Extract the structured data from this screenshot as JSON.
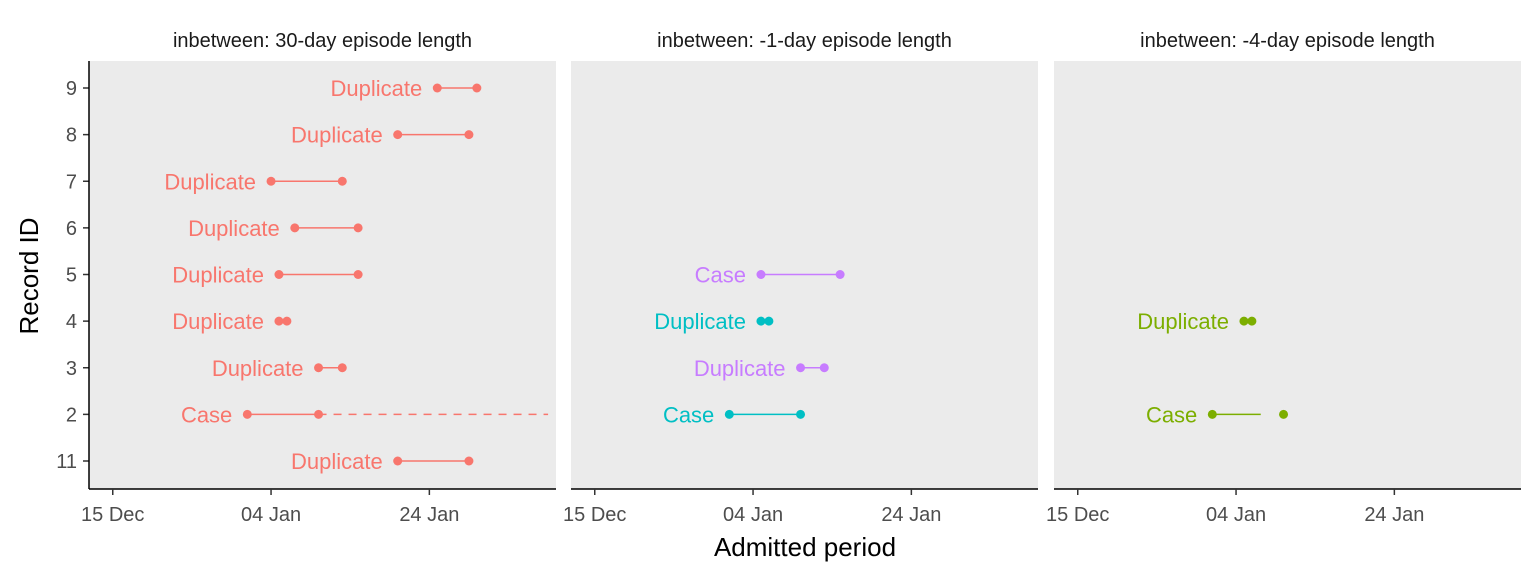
{
  "chart_data": {
    "type": "segment",
    "xlabel": "Admitted period",
    "ylabel": "Record ID",
    "x_ticks": [
      {
        "date": "2019-12-15",
        "label": "15 Dec"
      },
      {
        "date": "2020-01-04",
        "label": "04 Jan"
      },
      {
        "date": "2020-01-24",
        "label": "24 Jan"
      }
    ],
    "xlim": [
      "2019-12-12",
      "2020-02-09"
    ],
    "y_categories": [
      "11",
      "2",
      "3",
      "4",
      "5",
      "6",
      "7",
      "8",
      "9"
    ],
    "grid": false,
    "colors": {
      "panel1": "#F8766D",
      "teal": "#00BFC4",
      "purple": "#C77CFF",
      "green": "#7CAE00"
    },
    "panels": [
      {
        "title": "inbetween: 30-day episode length",
        "segments": [
          {
            "record": "9",
            "start": "2020-01-25",
            "end": "2020-01-30",
            "label": "Duplicate",
            "color": "#F8766D"
          },
          {
            "record": "8",
            "start": "2020-01-20",
            "end": "2020-01-29",
            "label": "Duplicate",
            "color": "#F8766D"
          },
          {
            "record": "7",
            "start": "2020-01-04",
            "end": "2020-01-13",
            "label": "Duplicate",
            "color": "#F8766D"
          },
          {
            "record": "6",
            "start": "2020-01-07",
            "end": "2020-01-15",
            "label": "Duplicate",
            "color": "#F8766D"
          },
          {
            "record": "5",
            "start": "2020-01-05",
            "end": "2020-01-15",
            "label": "Duplicate",
            "color": "#F8766D"
          },
          {
            "record": "4",
            "start": "2020-01-05",
            "end": "2020-01-06",
            "label": "Duplicate",
            "color": "#F8766D"
          },
          {
            "record": "3",
            "start": "2020-01-10",
            "end": "2020-01-13",
            "label": "Duplicate",
            "color": "#F8766D"
          },
          {
            "record": "2",
            "start": "2020-01-01",
            "end": "2020-01-10",
            "label": "Case",
            "color": "#F8766D",
            "dashed_to": "2020-02-08"
          },
          {
            "record": "11",
            "start": "2020-01-20",
            "end": "2020-01-29",
            "label": "Duplicate",
            "color": "#F8766D"
          }
        ]
      },
      {
        "title": "inbetween: -1-day episode length",
        "segments": [
          {
            "record": "5",
            "start": "2020-01-05",
            "end": "2020-01-15",
            "label": "Case",
            "color": "#C77CFF"
          },
          {
            "record": "4",
            "start": "2020-01-05",
            "end": "2020-01-06",
            "label": "Duplicate",
            "color": "#00BFC4"
          },
          {
            "record": "3",
            "start": "2020-01-10",
            "end": "2020-01-13",
            "label": "Duplicate",
            "color": "#C77CFF"
          },
          {
            "record": "2",
            "start": "2020-01-01",
            "end": "2020-01-10",
            "label": "Case",
            "color": "#00BFC4"
          }
        ]
      },
      {
        "title": "inbetween: -4-day episode length",
        "segments": [
          {
            "record": "4",
            "start": "2020-01-05",
            "end": "2020-01-06",
            "label": "Duplicate",
            "color": "#7CAE00"
          },
          {
            "record": "2",
            "start": "2020-01-01",
            "end": "2020-01-10",
            "label": "Case",
            "color": "#7CAE00",
            "gap_from": "2020-01-04"
          }
        ]
      }
    ]
  }
}
